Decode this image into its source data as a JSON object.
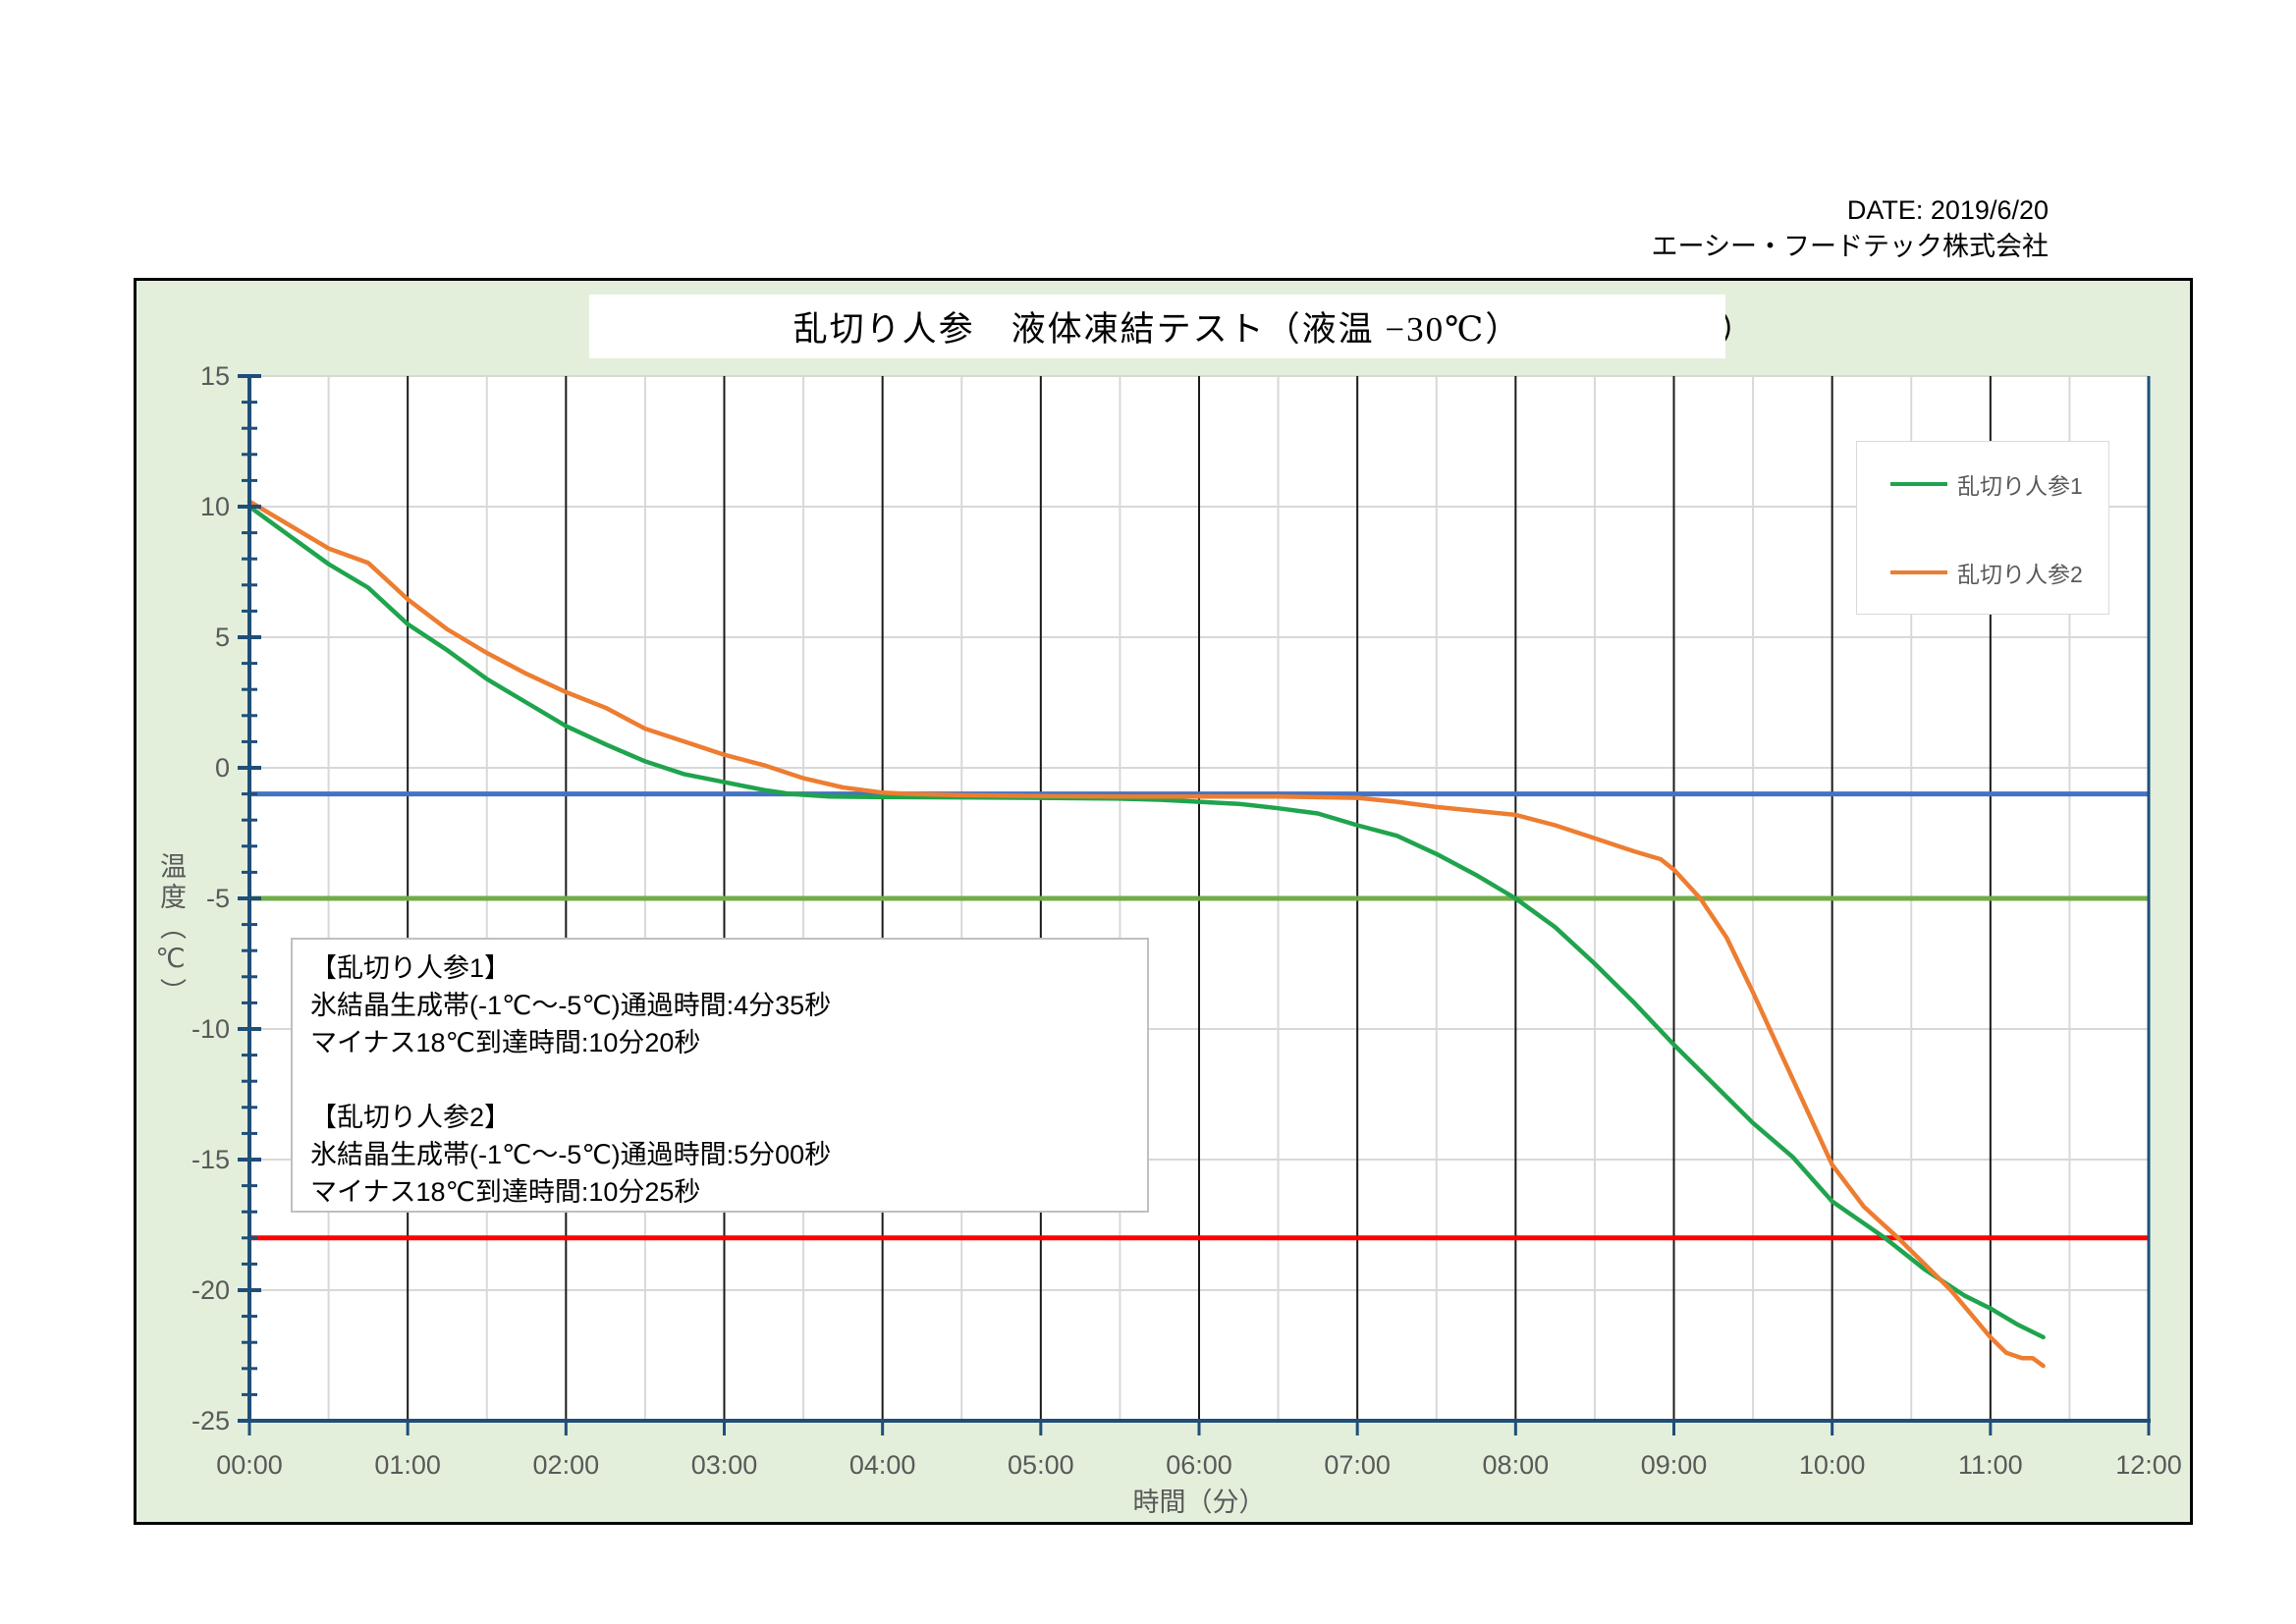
{
  "header": {
    "date_label": "DATE: 2019/6/20",
    "company": "エーシー・フードテック株式会社"
  },
  "decor": {
    "clipped_text_fragment": "）"
  },
  "annotation_box": {
    "lines": [
      "【乱切り人参1】",
      "氷結晶生成帯(-1℃～-5℃)通過時間:4分35秒",
      "マイナス18℃到達時間:10分20秒",
      "",
      "【乱切り人参2】",
      "氷結晶生成帯(-1℃～-5℃)通過時間:5分00秒",
      "マイナス18℃到達時間:10分25秒"
    ]
  },
  "chart_data": {
    "type": "line",
    "title": "乱切り人参　液体凍結テスト（液温 −30℃）",
    "xlabel": "時間（分）",
    "ylabel": "温度（℃）",
    "x_unit": "mm:ss",
    "xlim_seconds": [
      0,
      720
    ],
    "ylim": [
      -25,
      15
    ],
    "x_ticks": [
      "00:00",
      "01:00",
      "02:00",
      "03:00",
      "04:00",
      "05:00",
      "06:00",
      "07:00",
      "08:00",
      "09:00",
      "10:00",
      "11:00",
      "12:00"
    ],
    "y_ticks": [
      15,
      10,
      5,
      0,
      -5,
      -10,
      -15,
      -20,
      -25
    ],
    "grid": {
      "major_vertical_color": "#1A1A1A",
      "minor_color": "#D8D8D8",
      "horizontal_interval": 5,
      "minor_vertical_interval_seconds": 30
    },
    "axis_color": "#1F4E79",
    "tick_label_color": "#595959",
    "legend_position": "upper right",
    "reference_lines": [
      {
        "name": "-1C line",
        "value": -1,
        "color": "#4472C4"
      },
      {
        "name": "-5C line",
        "value": -5,
        "color": "#70AD47"
      },
      {
        "name": "-18C line",
        "value": -18,
        "color": "#FF0000"
      }
    ],
    "series": [
      {
        "name": "乱切り人参1",
        "color": "#1FA44D",
        "points": [
          [
            0,
            10.0
          ],
          [
            15,
            8.9
          ],
          [
            30,
            7.8
          ],
          [
            45,
            6.9
          ],
          [
            60,
            5.5
          ],
          [
            75,
            4.5
          ],
          [
            90,
            3.4
          ],
          [
            105,
            2.5
          ],
          [
            120,
            1.6
          ],
          [
            135,
            0.9
          ],
          [
            150,
            0.25
          ],
          [
            165,
            -0.25
          ],
          [
            180,
            -0.55
          ],
          [
            195,
            -0.85
          ],
          [
            205,
            -1.0
          ],
          [
            220,
            -1.1
          ],
          [
            240,
            -1.12
          ],
          [
            270,
            -1.13
          ],
          [
            300,
            -1.15
          ],
          [
            330,
            -1.18
          ],
          [
            345,
            -1.22
          ],
          [
            360,
            -1.3
          ],
          [
            375,
            -1.38
          ],
          [
            390,
            -1.55
          ],
          [
            405,
            -1.75
          ],
          [
            420,
            -2.2
          ],
          [
            435,
            -2.6
          ],
          [
            450,
            -3.3
          ],
          [
            465,
            -4.1
          ],
          [
            480,
            -5.0
          ],
          [
            495,
            -6.1
          ],
          [
            510,
            -7.5
          ],
          [
            525,
            -9.0
          ],
          [
            540,
            -10.6
          ],
          [
            555,
            -12.1
          ],
          [
            570,
            -13.6
          ],
          [
            585,
            -14.9
          ],
          [
            600,
            -16.6
          ],
          [
            610,
            -17.3
          ],
          [
            620,
            -18.0
          ],
          [
            635,
            -19.2
          ],
          [
            650,
            -20.2
          ],
          [
            660,
            -20.7
          ],
          [
            670,
            -21.3
          ],
          [
            680,
            -21.8
          ]
        ]
      },
      {
        "name": "乱切り人参2",
        "color": "#ED7D31",
        "points": [
          [
            0,
            10.2
          ],
          [
            15,
            9.3
          ],
          [
            30,
            8.4
          ],
          [
            45,
            7.85
          ],
          [
            60,
            6.45
          ],
          [
            75,
            5.3
          ],
          [
            90,
            4.4
          ],
          [
            105,
            3.6
          ],
          [
            120,
            2.9
          ],
          [
            135,
            2.3
          ],
          [
            150,
            1.5
          ],
          [
            165,
            1.0
          ],
          [
            180,
            0.5
          ],
          [
            195,
            0.1
          ],
          [
            210,
            -0.4
          ],
          [
            225,
            -0.75
          ],
          [
            240,
            -0.95
          ],
          [
            250,
            -1.0
          ],
          [
            270,
            -1.05
          ],
          [
            300,
            -1.08
          ],
          [
            330,
            -1.1
          ],
          [
            360,
            -1.1
          ],
          [
            390,
            -1.1
          ],
          [
            420,
            -1.15
          ],
          [
            435,
            -1.3
          ],
          [
            450,
            -1.5
          ],
          [
            465,
            -1.65
          ],
          [
            480,
            -1.8
          ],
          [
            495,
            -2.2
          ],
          [
            510,
            -2.7
          ],
          [
            525,
            -3.2
          ],
          [
            535,
            -3.5
          ],
          [
            540,
            -3.9
          ],
          [
            550,
            -5.0
          ],
          [
            560,
            -6.5
          ],
          [
            570,
            -8.6
          ],
          [
            580,
            -10.8
          ],
          [
            590,
            -13.0
          ],
          [
            600,
            -15.2
          ],
          [
            612,
            -16.8
          ],
          [
            625,
            -18.0
          ],
          [
            635,
            -19.0
          ],
          [
            645,
            -20.0
          ],
          [
            655,
            -21.2
          ],
          [
            660,
            -21.8
          ],
          [
            666,
            -22.4
          ],
          [
            672,
            -22.6
          ],
          [
            676,
            -22.6
          ],
          [
            680,
            -22.9
          ]
        ]
      }
    ]
  }
}
